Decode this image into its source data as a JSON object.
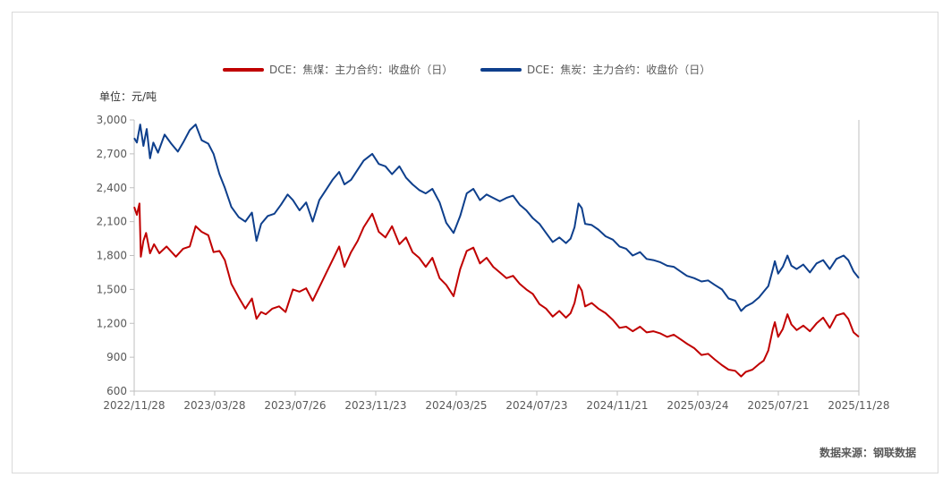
{
  "chart_data": {
    "type": "line",
    "title": "",
    "ylabel": "单位：元/吨",
    "xlabel": "",
    "ylim": [
      600,
      3000
    ],
    "yticks": [
      600,
      900,
      1200,
      1500,
      1800,
      2100,
      2400,
      2700,
      3000
    ],
    "ytick_labels": [
      "600",
      "900",
      "1,200",
      "1,500",
      "1,800",
      "2,100",
      "2,400",
      "2,700",
      "3,000"
    ],
    "x_start": "2022-11-28",
    "x_end": "2025-11-28",
    "xtick_labels": [
      "2022/11/28",
      "2023/03/28",
      "2023/07/26",
      "2023/11/23",
      "2024/03/25",
      "2024/07/23",
      "2024/11/21",
      "2025/03/24",
      "2025/07/21",
      "2025/11/28"
    ],
    "legend_position": "top-center",
    "series": [
      {
        "name": "DCE：焦煤：主力合约：收盘价（日）",
        "color": "#c00000",
        "points": [
          [
            "2022-11-28",
            2230
          ],
          [
            "2022-12-02",
            2160
          ],
          [
            "2022-12-06",
            2260
          ],
          [
            "2022-12-08",
            1790
          ],
          [
            "2022-12-12",
            1930
          ],
          [
            "2022-12-16",
            2000
          ],
          [
            "2022-12-22",
            1820
          ],
          [
            "2022-12-28",
            1900
          ],
          [
            "2023-01-05",
            1820
          ],
          [
            "2023-01-16",
            1880
          ],
          [
            "2023-01-30",
            1790
          ],
          [
            "2023-02-10",
            1860
          ],
          [
            "2023-02-20",
            1880
          ],
          [
            "2023-03-01",
            2060
          ],
          [
            "2023-03-10",
            2010
          ],
          [
            "2023-03-20",
            1980
          ],
          [
            "2023-03-28",
            1830
          ],
          [
            "2023-04-06",
            1840
          ],
          [
            "2023-04-14",
            1760
          ],
          [
            "2023-04-24",
            1550
          ],
          [
            "2023-05-05",
            1430
          ],
          [
            "2023-05-15",
            1330
          ],
          [
            "2023-05-25",
            1420
          ],
          [
            "2023-06-01",
            1240
          ],
          [
            "2023-06-08",
            1300
          ],
          [
            "2023-06-15",
            1280
          ],
          [
            "2023-06-25",
            1330
          ],
          [
            "2023-07-05",
            1350
          ],
          [
            "2023-07-15",
            1300
          ],
          [
            "2023-07-26",
            1500
          ],
          [
            "2023-08-05",
            1480
          ],
          [
            "2023-08-15",
            1510
          ],
          [
            "2023-08-25",
            1400
          ],
          [
            "2023-09-04",
            1520
          ],
          [
            "2023-09-14",
            1640
          ],
          [
            "2023-09-24",
            1760
          ],
          [
            "2023-10-04",
            1880
          ],
          [
            "2023-10-12",
            1700
          ],
          [
            "2023-10-22",
            1830
          ],
          [
            "2023-11-01",
            1930
          ],
          [
            "2023-11-10",
            2050
          ],
          [
            "2023-11-23",
            2170
          ],
          [
            "2023-12-03",
            2010
          ],
          [
            "2023-12-13",
            1960
          ],
          [
            "2023-12-23",
            2060
          ],
          [
            "2024-01-03",
            1900
          ],
          [
            "2024-01-13",
            1960
          ],
          [
            "2024-01-23",
            1830
          ],
          [
            "2024-02-02",
            1780
          ],
          [
            "2024-02-12",
            1700
          ],
          [
            "2024-02-22",
            1780
          ],
          [
            "2024-03-04",
            1600
          ],
          [
            "2024-03-14",
            1540
          ],
          [
            "2024-03-25",
            1440
          ],
          [
            "2024-04-04",
            1680
          ],
          [
            "2024-04-14",
            1840
          ],
          [
            "2024-04-24",
            1870
          ],
          [
            "2024-05-04",
            1730
          ],
          [
            "2024-05-14",
            1780
          ],
          [
            "2024-05-24",
            1700
          ],
          [
            "2024-06-03",
            1650
          ],
          [
            "2024-06-13",
            1600
          ],
          [
            "2024-06-23",
            1620
          ],
          [
            "2024-07-03",
            1550
          ],
          [
            "2024-07-13",
            1500
          ],
          [
            "2024-07-23",
            1460
          ],
          [
            "2024-08-02",
            1370
          ],
          [
            "2024-08-12",
            1330
          ],
          [
            "2024-08-22",
            1260
          ],
          [
            "2024-09-01",
            1310
          ],
          [
            "2024-09-11",
            1250
          ],
          [
            "2024-09-18",
            1290
          ],
          [
            "2024-09-24",
            1380
          ],
          [
            "2024-09-30",
            1540
          ],
          [
            "2024-10-05",
            1490
          ],
          [
            "2024-10-10",
            1350
          ],
          [
            "2024-10-20",
            1380
          ],
          [
            "2024-10-30",
            1330
          ],
          [
            "2024-11-10",
            1290
          ],
          [
            "2024-11-21",
            1230
          ],
          [
            "2024-12-01",
            1160
          ],
          [
            "2024-12-11",
            1170
          ],
          [
            "2024-12-21",
            1130
          ],
          [
            "2025-01-01",
            1170
          ],
          [
            "2025-01-11",
            1120
          ],
          [
            "2025-01-21",
            1130
          ],
          [
            "2025-02-01",
            1110
          ],
          [
            "2025-02-11",
            1080
          ],
          [
            "2025-02-21",
            1100
          ],
          [
            "2025-03-03",
            1060
          ],
          [
            "2025-03-13",
            1020
          ],
          [
            "2025-03-24",
            980
          ],
          [
            "2025-04-04",
            920
          ],
          [
            "2025-04-14",
            930
          ],
          [
            "2025-04-24",
            880
          ],
          [
            "2025-05-05",
            830
          ],
          [
            "2025-05-15",
            790
          ],
          [
            "2025-05-25",
            780
          ],
          [
            "2025-06-03",
            730
          ],
          [
            "2025-06-10",
            770
          ],
          [
            "2025-06-20",
            790
          ],
          [
            "2025-06-30",
            840
          ],
          [
            "2025-07-07",
            870
          ],
          [
            "2025-07-14",
            960
          ],
          [
            "2025-07-21",
            1150
          ],
          [
            "2025-07-24",
            1210
          ],
          [
            "2025-07-29",
            1080
          ],
          [
            "2025-08-05",
            1150
          ],
          [
            "2025-08-12",
            1280
          ],
          [
            "2025-08-18",
            1190
          ],
          [
            "2025-08-26",
            1140
          ],
          [
            "2025-09-05",
            1180
          ],
          [
            "2025-09-15",
            1130
          ],
          [
            "2025-09-25",
            1200
          ],
          [
            "2025-10-05",
            1250
          ],
          [
            "2025-10-15",
            1160
          ],
          [
            "2025-10-25",
            1270
          ],
          [
            "2025-11-05",
            1290
          ],
          [
            "2025-11-12",
            1240
          ],
          [
            "2025-11-20",
            1120
          ],
          [
            "2025-11-28",
            1080
          ]
        ]
      },
      {
        "name": "DCE：焦炭：主力合约：收盘价（日）",
        "color": "#0e3f8c",
        "points": [
          [
            "2022-11-28",
            2840
          ],
          [
            "2022-12-02",
            2800
          ],
          [
            "2022-12-07",
            2960
          ],
          [
            "2022-12-12",
            2770
          ],
          [
            "2022-12-17",
            2920
          ],
          [
            "2022-12-22",
            2660
          ],
          [
            "2022-12-27",
            2800
          ],
          [
            "2023-01-03",
            2710
          ],
          [
            "2023-01-13",
            2870
          ],
          [
            "2023-01-23",
            2790
          ],
          [
            "2023-02-02",
            2720
          ],
          [
            "2023-02-10",
            2800
          ],
          [
            "2023-02-20",
            2910
          ],
          [
            "2023-03-01",
            2960
          ],
          [
            "2023-03-10",
            2820
          ],
          [
            "2023-03-20",
            2790
          ],
          [
            "2023-03-28",
            2700
          ],
          [
            "2023-04-06",
            2520
          ],
          [
            "2023-04-14",
            2400
          ],
          [
            "2023-04-24",
            2230
          ],
          [
            "2023-05-05",
            2140
          ],
          [
            "2023-05-15",
            2100
          ],
          [
            "2023-05-25",
            2180
          ],
          [
            "2023-06-01",
            1930
          ],
          [
            "2023-06-08",
            2080
          ],
          [
            "2023-06-18",
            2150
          ],
          [
            "2023-06-28",
            2170
          ],
          [
            "2023-07-08",
            2250
          ],
          [
            "2023-07-18",
            2340
          ],
          [
            "2023-07-26",
            2290
          ],
          [
            "2023-08-05",
            2200
          ],
          [
            "2023-08-15",
            2270
          ],
          [
            "2023-08-25",
            2100
          ],
          [
            "2023-09-04",
            2290
          ],
          [
            "2023-09-14",
            2380
          ],
          [
            "2023-09-24",
            2470
          ],
          [
            "2023-10-04",
            2540
          ],
          [
            "2023-10-12",
            2430
          ],
          [
            "2023-10-22",
            2470
          ],
          [
            "2023-11-01",
            2560
          ],
          [
            "2023-11-10",
            2640
          ],
          [
            "2023-11-23",
            2700
          ],
          [
            "2023-12-03",
            2610
          ],
          [
            "2023-12-13",
            2590
          ],
          [
            "2023-12-23",
            2520
          ],
          [
            "2024-01-03",
            2590
          ],
          [
            "2024-01-13",
            2490
          ],
          [
            "2024-01-23",
            2430
          ],
          [
            "2024-02-02",
            2380
          ],
          [
            "2024-02-12",
            2350
          ],
          [
            "2024-02-22",
            2390
          ],
          [
            "2024-03-04",
            2270
          ],
          [
            "2024-03-14",
            2090
          ],
          [
            "2024-03-25",
            2000
          ],
          [
            "2024-04-04",
            2150
          ],
          [
            "2024-04-14",
            2350
          ],
          [
            "2024-04-24",
            2390
          ],
          [
            "2024-05-04",
            2290
          ],
          [
            "2024-05-14",
            2340
          ],
          [
            "2024-05-24",
            2310
          ],
          [
            "2024-06-03",
            2280
          ],
          [
            "2024-06-13",
            2310
          ],
          [
            "2024-06-23",
            2330
          ],
          [
            "2024-07-03",
            2250
          ],
          [
            "2024-07-13",
            2200
          ],
          [
            "2024-07-23",
            2130
          ],
          [
            "2024-08-02",
            2080
          ],
          [
            "2024-08-12",
            2000
          ],
          [
            "2024-08-22",
            1920
          ],
          [
            "2024-09-01",
            1960
          ],
          [
            "2024-09-11",
            1910
          ],
          [
            "2024-09-18",
            1950
          ],
          [
            "2024-09-24",
            2050
          ],
          [
            "2024-09-30",
            2260
          ],
          [
            "2024-10-05",
            2220
          ],
          [
            "2024-10-10",
            2080
          ],
          [
            "2024-10-20",
            2070
          ],
          [
            "2024-10-30",
            2030
          ],
          [
            "2024-11-10",
            1970
          ],
          [
            "2024-11-21",
            1940
          ],
          [
            "2024-12-01",
            1880
          ],
          [
            "2024-12-11",
            1860
          ],
          [
            "2024-12-21",
            1800
          ],
          [
            "2025-01-01",
            1830
          ],
          [
            "2025-01-11",
            1770
          ],
          [
            "2025-01-21",
            1760
          ],
          [
            "2025-02-01",
            1740
          ],
          [
            "2025-02-11",
            1710
          ],
          [
            "2025-02-21",
            1700
          ],
          [
            "2025-03-03",
            1660
          ],
          [
            "2025-03-13",
            1620
          ],
          [
            "2025-03-24",
            1600
          ],
          [
            "2025-04-04",
            1570
          ],
          [
            "2025-04-14",
            1580
          ],
          [
            "2025-04-24",
            1540
          ],
          [
            "2025-05-05",
            1500
          ],
          [
            "2025-05-15",
            1420
          ],
          [
            "2025-05-25",
            1400
          ],
          [
            "2025-06-03",
            1310
          ],
          [
            "2025-06-10",
            1350
          ],
          [
            "2025-06-20",
            1380
          ],
          [
            "2025-06-30",
            1430
          ],
          [
            "2025-07-07",
            1480
          ],
          [
            "2025-07-14",
            1530
          ],
          [
            "2025-07-21",
            1680
          ],
          [
            "2025-07-24",
            1750
          ],
          [
            "2025-07-29",
            1640
          ],
          [
            "2025-08-05",
            1700
          ],
          [
            "2025-08-12",
            1800
          ],
          [
            "2025-08-18",
            1710
          ],
          [
            "2025-08-26",
            1680
          ],
          [
            "2025-09-05",
            1720
          ],
          [
            "2025-09-15",
            1650
          ],
          [
            "2025-09-25",
            1730
          ],
          [
            "2025-10-05",
            1760
          ],
          [
            "2025-10-15",
            1680
          ],
          [
            "2025-10-25",
            1770
          ],
          [
            "2025-11-05",
            1800
          ],
          [
            "2025-11-12",
            1760
          ],
          [
            "2025-11-20",
            1660
          ],
          [
            "2025-11-28",
            1600
          ]
        ]
      }
    ]
  },
  "source_text": "数据来源：钢联数据"
}
